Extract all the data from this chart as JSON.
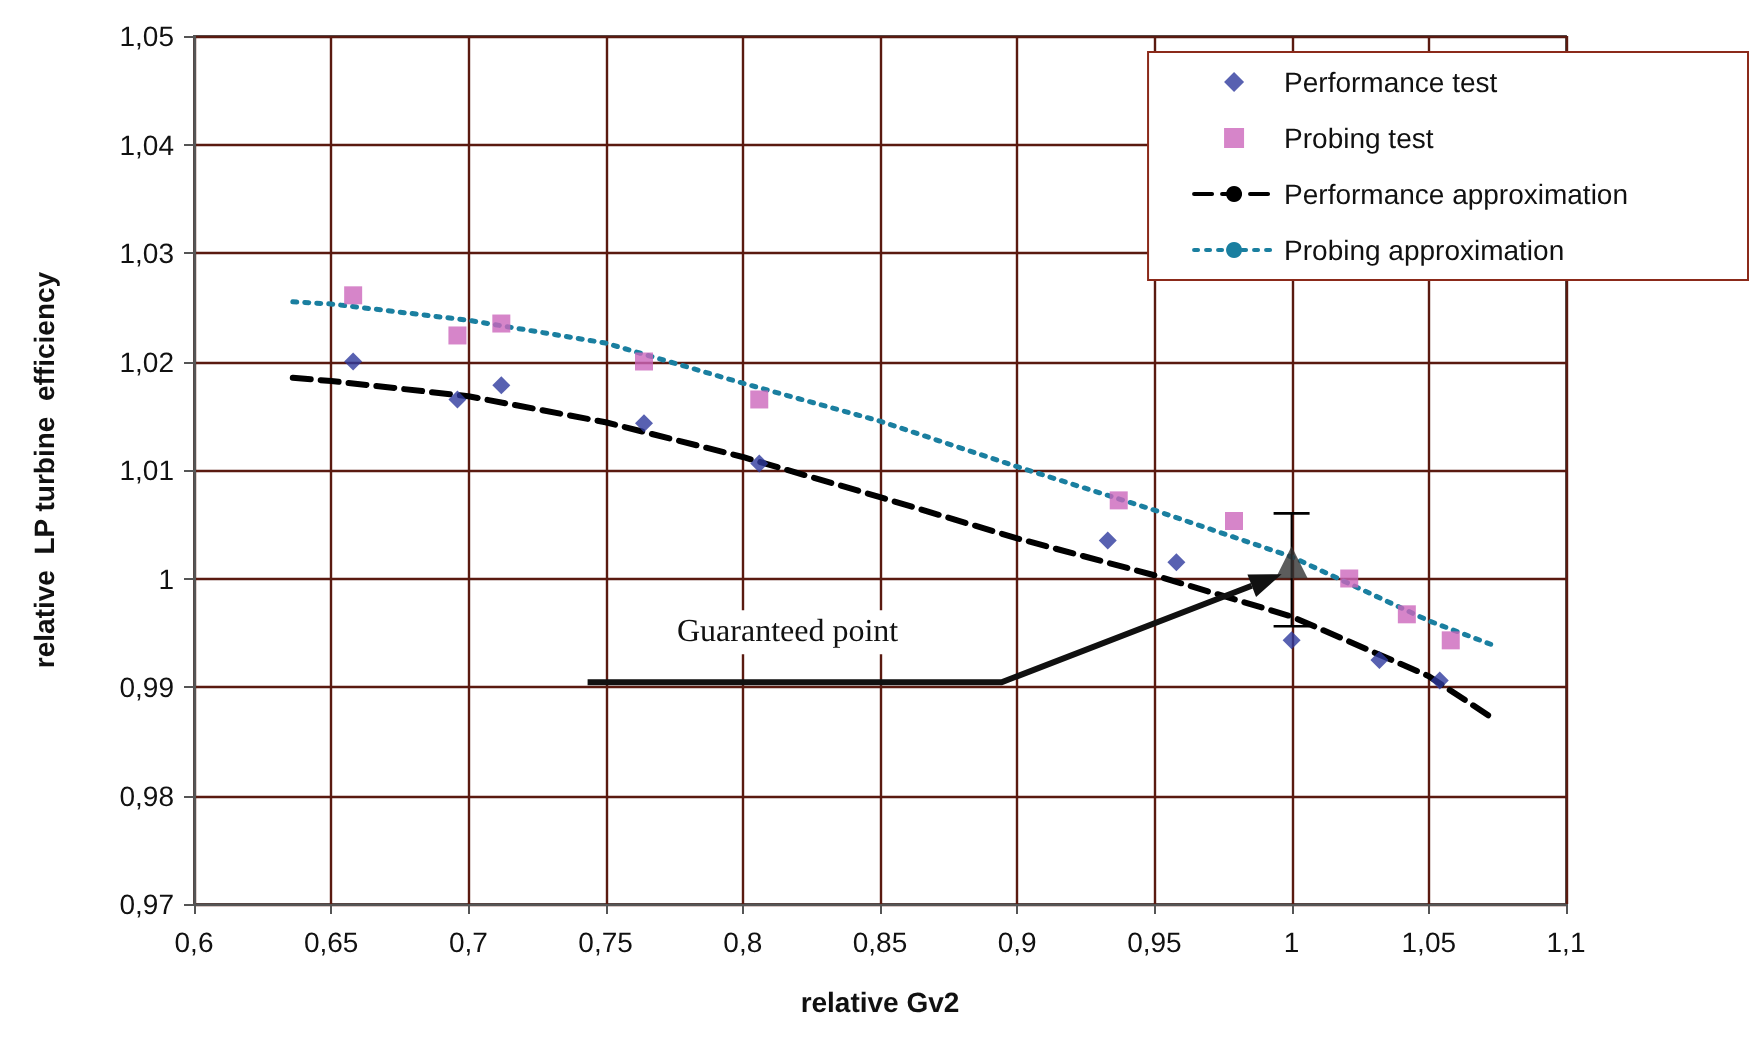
{
  "chart_data": {
    "type": "scatter",
    "xlabel": "relative Gv2",
    "ylabel": "relative  LP turbine  efficiency",
    "xlim": [
      0.6,
      1.1
    ],
    "xticks": [
      {
        "value": 0.6,
        "label": "0,6"
      },
      {
        "value": 0.65,
        "label": "0,65"
      },
      {
        "value": 0.7,
        "label": "0,7"
      },
      {
        "value": 0.75,
        "label": "0,75"
      },
      {
        "value": 0.8,
        "label": "0,8"
      },
      {
        "value": 0.85,
        "label": "0,85"
      },
      {
        "value": 0.9,
        "label": "0,9"
      },
      {
        "value": 0.95,
        "label": "0,95"
      },
      {
        "value": 1,
        "label": "1"
      },
      {
        "value": 1.05,
        "label": "1,05"
      },
      {
        "value": 1.1,
        "label": "1,1"
      }
    ],
    "ylim": [
      0.97,
      1.05
    ],
    "yticks": [
      {
        "value": 0.97,
        "label": "0,97"
      },
      {
        "value": 0.98,
        "label": "0,98"
      },
      {
        "value": 0.99,
        "label": "0,99"
      },
      {
        "value": 1,
        "label": "1"
      },
      {
        "value": 1.01,
        "label": "1,01"
      },
      {
        "value": 1.02,
        "label": "1,02"
      },
      {
        "value": 1.03,
        "label": "1,03"
      },
      {
        "value": 1.04,
        "label": "1,04"
      },
      {
        "value": 1.05,
        "label": "1,05"
      }
    ],
    "grid": true,
    "legend": "top right",
    "series": [
      {
        "name": "Performance test",
        "marker": "diamond",
        "color": "#2e3a9e",
        "x": [
          0.658,
          0.696,
          0.712,
          0.764,
          0.806,
          0.933,
          0.958,
          1.0,
          1.032,
          1.054
        ],
        "values": [
          1.02,
          1.0165,
          1.0178,
          1.0143,
          1.0106,
          1.0035,
          1.0015,
          0.9943,
          0.9925,
          0.9906
        ]
      },
      {
        "name": "Probing test",
        "marker": "square",
        "color": "#cc66bb",
        "x": [
          0.658,
          0.696,
          0.712,
          0.764,
          0.806,
          0.937,
          0.979,
          1.021,
          1.042,
          1.058
        ],
        "values": [
          1.0261,
          1.0224,
          1.0235,
          1.02,
          1.0165,
          1.0072,
          1.0053,
          1.0,
          0.9967,
          0.9943
        ]
      },
      {
        "name": "Performance approximation",
        "type": "line",
        "line_style": "dashed",
        "color": "#000000",
        "x": [
          0.636,
          0.65,
          0.7,
          0.75,
          0.8,
          0.85,
          0.9,
          0.95,
          1.0,
          1.05,
          1.074
        ],
        "values": [
          1.0185,
          1.0182,
          1.0168,
          1.0144,
          1.0112,
          1.0075,
          1.0037,
          1.0003,
          0.9965,
          0.991,
          0.987
        ]
      },
      {
        "name": "Probing approximation",
        "type": "line",
        "line_style": "dotted",
        "color": "#1a7fa0",
        "x": [
          0.636,
          0.65,
          0.7,
          0.75,
          0.8,
          0.85,
          0.9,
          0.95,
          1.0,
          1.05,
          1.074
        ],
        "values": [
          1.0255,
          1.0253,
          1.0238,
          1.0217,
          1.018,
          1.0145,
          1.0103,
          1.0063,
          1.002,
          0.9961,
          0.9938
        ]
      },
      {
        "marker": "triangle",
        "color": "#333333",
        "x": [
          1.0
        ],
        "values": [
          1.0015
        ],
        "errors": [
          [
            0.9956,
            1.006
          ]
        ]
      }
    ],
    "annotations": [
      "Guaranteed point"
    ]
  }
}
